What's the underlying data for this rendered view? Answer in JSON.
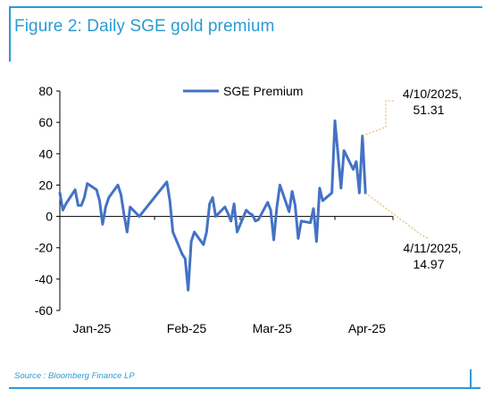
{
  "figure": {
    "title": "Figure 2: Daily SGE gold premium",
    "source": "Source : Bloomberg Finance LP",
    "accent_color": "#2a9bd2",
    "line_color": "#4472c4"
  },
  "chart_data": {
    "type": "line",
    "title": "",
    "xlabel": "",
    "ylabel": "",
    "ylim": [
      -60,
      80
    ],
    "yticks": [
      80,
      60,
      40,
      20,
      0,
      -20,
      -40,
      -60
    ],
    "xtick_labels": [
      "Jan-25",
      "Feb-25",
      "Mar-25",
      "Apr-25"
    ],
    "xlim": [
      "2025-01-01",
      "2025-04-20"
    ],
    "legend_position": "top-center",
    "grid": false,
    "series": [
      {
        "name": "SGE Premium",
        "x": [
          "2025-01-01",
          "2025-01-02",
          "2025-01-03",
          "2025-01-06",
          "2025-01-07",
          "2025-01-08",
          "2025-01-09",
          "2025-01-10",
          "2025-01-13",
          "2025-01-14",
          "2025-01-15",
          "2025-01-16",
          "2025-01-17",
          "2025-01-20",
          "2025-01-21",
          "2025-01-22",
          "2025-01-23",
          "2025-01-24",
          "2025-01-27",
          "2025-02-05",
          "2025-02-06",
          "2025-02-07",
          "2025-02-10",
          "2025-02-11",
          "2025-02-12",
          "2025-02-13",
          "2025-02-14",
          "2025-02-17",
          "2025-02-18",
          "2025-02-19",
          "2025-02-20",
          "2025-02-21",
          "2025-02-24",
          "2025-02-25",
          "2025-02-26",
          "2025-02-27",
          "2025-02-28",
          "2025-03-03",
          "2025-03-04",
          "2025-03-05",
          "2025-03-06",
          "2025-03-07",
          "2025-03-10",
          "2025-03-11",
          "2025-03-12",
          "2025-03-13",
          "2025-03-14",
          "2025-03-17",
          "2025-03-18",
          "2025-03-19",
          "2025-03-20",
          "2025-03-21",
          "2025-03-24",
          "2025-03-25",
          "2025-03-26",
          "2025-03-27",
          "2025-03-28",
          "2025-03-31",
          "2025-04-01",
          "2025-04-02",
          "2025-04-03",
          "2025-04-04",
          "2025-04-07",
          "2025-04-08",
          "2025-04-09",
          "2025-04-10",
          "2025-04-11"
        ],
        "values": [
          15,
          4,
          8,
          17,
          7,
          7,
          12,
          21,
          17,
          10,
          -5,
          6,
          12,
          20,
          14,
          1,
          -10,
          6,
          0,
          22,
          10,
          -10,
          -24,
          -27,
          -47,
          -16,
          -10,
          -18,
          -10,
          8,
          12,
          0,
          6,
          2,
          -3,
          8,
          -10,
          4,
          2,
          1,
          -3,
          -2,
          9,
          4,
          -15,
          6,
          20,
          3,
          16,
          7,
          -14,
          -3,
          -4,
          5,
          -16,
          18,
          10,
          15,
          61,
          40,
          18,
          42,
          30,
          35,
          15,
          51.31,
          14.97
        ]
      }
    ],
    "annotations": [
      {
        "date_label": "4/10/2025,",
        "value_label": "51.31",
        "x": "2025-04-10",
        "y": 51.31
      },
      {
        "date_label": "4/11/2025,",
        "value_label": "14.97",
        "x": "2025-04-11",
        "y": 14.97
      }
    ]
  }
}
